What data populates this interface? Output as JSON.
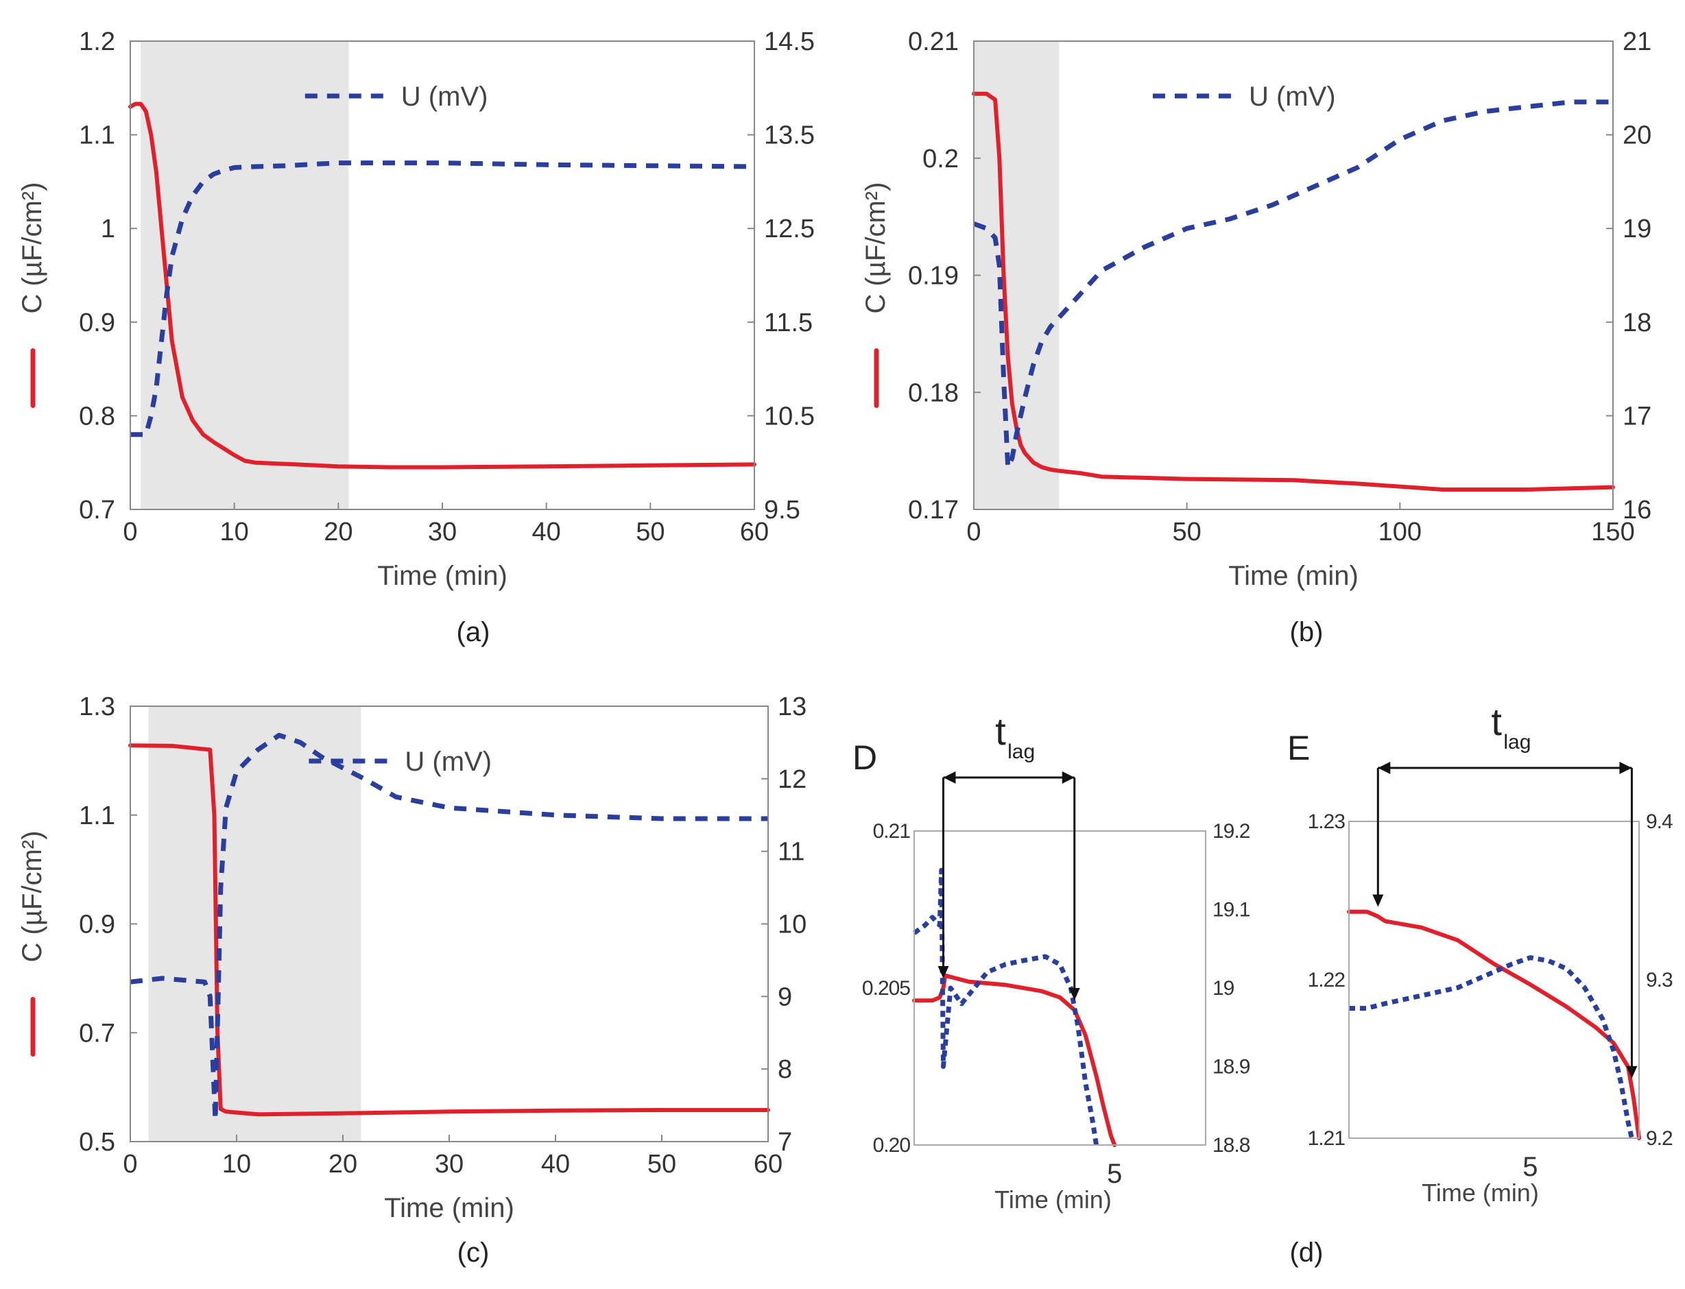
{
  "figure": {
    "panel_captions": [
      "(a)",
      "(b)",
      "(c)",
      "(d)"
    ]
  },
  "chart_data": [
    {
      "id": "a",
      "type": "line",
      "caption": "(a)",
      "xlabel": "Time (min)",
      "ylabel": "C (µF/cm²)",
      "legend": "U (mV)",
      "xlim": [
        0,
        60
      ],
      "ylim": [
        0.7,
        1.2
      ],
      "y2lim": [
        9.5,
        14.5
      ],
      "xticks": [
        "0",
        "10",
        "20",
        "30",
        "40",
        "50",
        "60"
      ],
      "yticks": [
        "0.7",
        "0.8",
        "0.9",
        "1",
        "1.1",
        "1.2"
      ],
      "y2ticks": [
        "9.5",
        "10.5",
        "11.5",
        "12.5",
        "13.5",
        "14.5"
      ],
      "shade": [
        1,
        21
      ],
      "series": [
        {
          "name": "C",
          "axis": "left",
          "style": "solid",
          "color": "#e0202a",
          "x": [
            0,
            0.5,
            1,
            1.5,
            2,
            2.5,
            3,
            3.5,
            4,
            5,
            6,
            7,
            8,
            9,
            10,
            11,
            12,
            14,
            16,
            20,
            25,
            30,
            40,
            50,
            60
          ],
          "y": [
            1.13,
            1.133,
            1.133,
            1.125,
            1.1,
            1.06,
            1.0,
            0.94,
            0.88,
            0.82,
            0.795,
            0.78,
            0.772,
            0.765,
            0.758,
            0.752,
            0.75,
            0.749,
            0.748,
            0.746,
            0.745,
            0.745,
            0.746,
            0.747,
            0.748
          ]
        },
        {
          "name": "U (mV)",
          "axis": "right",
          "style": "dashed",
          "color": "#2a3f9d",
          "x": [
            0,
            1.5,
            2,
            2.5,
            3,
            3.5,
            4,
            5,
            6,
            7,
            8,
            9,
            10,
            12,
            15,
            20,
            30,
            40,
            50,
            60
          ],
          "y": [
            10.3,
            10.3,
            10.5,
            10.8,
            11.3,
            11.8,
            12.2,
            12.6,
            12.85,
            13.0,
            13.08,
            13.12,
            13.15,
            13.16,
            13.17,
            13.2,
            13.2,
            13.18,
            13.17,
            13.16
          ]
        }
      ]
    },
    {
      "id": "b",
      "type": "line",
      "caption": "(b)",
      "xlabel": "Time (min)",
      "ylabel": "C (µF/cm²)",
      "legend": "U (mV)",
      "xlim": [
        0,
        150
      ],
      "ylim": [
        0.17,
        0.21
      ],
      "y2lim": [
        16,
        21
      ],
      "xticks": [
        "0",
        "50",
        "100",
        "150"
      ],
      "yticks": [
        "0.17",
        "0.18",
        "0.19",
        "0.2",
        "0.21"
      ],
      "y2ticks": [
        "16",
        "17",
        "18",
        "19",
        "20",
        "21"
      ],
      "shade": [
        0,
        20
      ],
      "series": [
        {
          "name": "C",
          "axis": "left",
          "style": "solid",
          "color": "#e0202a",
          "x": [
            0,
            1,
            3,
            5,
            6,
            7,
            8,
            9,
            10,
            11,
            12,
            14,
            16,
            18,
            20,
            25,
            30,
            50,
            75,
            90,
            110,
            130,
            150
          ],
          "y": [
            0.2055,
            0.2055,
            0.2055,
            0.205,
            0.2,
            0.19,
            0.183,
            0.179,
            0.177,
            0.1755,
            0.1748,
            0.174,
            0.1736,
            0.1734,
            0.1733,
            0.1731,
            0.1728,
            0.1726,
            0.1725,
            0.1722,
            0.1717,
            0.1717,
            0.1719
          ]
        },
        {
          "name": "U (mV)",
          "axis": "right",
          "style": "dashed",
          "color": "#2a3f9d",
          "x": [
            0,
            3,
            5,
            6,
            7,
            8,
            9,
            10,
            12,
            14,
            16,
            18,
            20,
            25,
            30,
            40,
            50,
            60,
            70,
            80,
            90,
            100,
            110,
            120,
            130,
            140,
            150
          ],
          "y": [
            19.05,
            19.0,
            18.9,
            18.6,
            17.4,
            16.45,
            16.55,
            16.8,
            17.2,
            17.55,
            17.8,
            17.95,
            18.05,
            18.3,
            18.55,
            18.8,
            19.0,
            19.1,
            19.25,
            19.45,
            19.65,
            19.95,
            20.15,
            20.25,
            20.3,
            20.35,
            20.35
          ]
        }
      ]
    },
    {
      "id": "c",
      "type": "line",
      "caption": "(c)",
      "xlabel": "Time (min)",
      "ylabel": "C (µF/cm²)",
      "legend": "U (mV)",
      "xlim": [
        0,
        60
      ],
      "ylim": [
        0.5,
        1.3
      ],
      "y2lim": [
        7,
        13
      ],
      "xticks": [
        "0",
        "10",
        "20",
        "30",
        "40",
        "50",
        "60"
      ],
      "yticks": [
        "0.5",
        "0.7",
        "0.9",
        "1.1",
        "1.3"
      ],
      "y2ticks": [
        "7",
        "8",
        "9",
        "10",
        "11",
        "12",
        "13"
      ],
      "shade": [
        1.7,
        21.7
      ],
      "series": [
        {
          "name": "C",
          "axis": "left",
          "style": "solid",
          "color": "#e0202a",
          "x": [
            0,
            4,
            7.5,
            7.9,
            8.2,
            8.5,
            9,
            12,
            20,
            30,
            40,
            50,
            60
          ],
          "y": [
            1.228,
            1.227,
            1.22,
            1.1,
            0.7,
            0.56,
            0.555,
            0.55,
            0.552,
            0.555,
            0.557,
            0.558,
            0.558
          ]
        },
        {
          "name": "U (mV)",
          "axis": "right",
          "style": "dashed",
          "color": "#2a3f9d",
          "x": [
            0,
            3,
            7,
            7.5,
            8,
            8.5,
            9,
            10,
            12,
            14,
            16,
            18,
            20,
            22,
            25,
            30,
            40,
            50,
            60
          ],
          "y": [
            9.2,
            9.25,
            9.2,
            9.0,
            7.3,
            10.5,
            11.6,
            12.1,
            12.4,
            12.6,
            12.5,
            12.3,
            12.15,
            12.0,
            11.75,
            11.6,
            11.5,
            11.45,
            11.45
          ]
        }
      ]
    },
    {
      "id": "D",
      "type": "line",
      "panel_letter": "D",
      "xlabel": "Time (min)",
      "lag_label": "t",
      "lag_sub": "lag",
      "xtick_label": "5",
      "xlim": [
        0,
        8
      ],
      "ylim": [
        0.2,
        0.21
      ],
      "y2lim": [
        18.8,
        19.2
      ],
      "yticks": [
        "0.20",
        "0.205",
        "0.21"
      ],
      "y2ticks": [
        "18.8",
        "18.9",
        "19",
        "19.1",
        "19.2"
      ],
      "lag": [
        0.8,
        4.4
      ],
      "series": [
        {
          "name": "C",
          "axis": "left",
          "style": "solid",
          "color": "#e0202a",
          "x": [
            0,
            0.5,
            0.7,
            0.8,
            0.85,
            1.5,
            2.5,
            3.5,
            4.0,
            4.4,
            4.7,
            5.0,
            5.2,
            5.4,
            5.5
          ],
          "y": [
            0.2046,
            0.2046,
            0.2047,
            0.205,
            0.2054,
            0.2052,
            0.2051,
            0.2049,
            0.2047,
            0.2043,
            0.2035,
            0.2022,
            0.2012,
            0.2003,
            0.2
          ]
        },
        {
          "name": "U (mV)",
          "axis": "right",
          "style": "dashed",
          "color": "#2a3f9d",
          "x": [
            0,
            0.3,
            0.5,
            0.7,
            0.75,
            0.8,
            0.9,
            1.0,
            1.3,
            2.0,
            2.5,
            3.0,
            3.6,
            4.0,
            4.3,
            4.5,
            4.7,
            4.9,
            5.0
          ],
          "y": [
            19.07,
            19.08,
            19.09,
            19.08,
            19.15,
            18.9,
            18.95,
            19.0,
            18.98,
            19.02,
            19.03,
            19.035,
            19.04,
            19.03,
            19.0,
            18.95,
            18.88,
            18.83,
            18.8
          ]
        }
      ]
    },
    {
      "id": "E",
      "type": "line",
      "panel_letter": "E",
      "xlabel": "Time (min)",
      "lag_label": "t",
      "lag_sub": "lag",
      "xtick_label": "5",
      "xlim": [
        0,
        8
      ],
      "ylim": [
        1.21,
        1.23
      ],
      "y2lim": [
        9.2,
        9.4
      ],
      "yticks": [
        "1.21",
        "1.22",
        "1.23"
      ],
      "y2ticks": [
        "9.2",
        "9.3",
        "9.4"
      ],
      "lag": [
        0.8,
        7.8
      ],
      "series": [
        {
          "name": "C",
          "axis": "right",
          "style": "solid",
          "color": "#e0202a",
          "x": [
            0,
            0.5,
            0.8,
            1.0,
            2,
            3,
            4,
            5,
            6,
            6.8,
            7.3,
            7.7,
            7.85,
            8.0
          ],
          "y": [
            9.343,
            9.343,
            9.34,
            9.337,
            9.333,
            9.325,
            9.31,
            9.297,
            9.283,
            9.27,
            9.26,
            9.245,
            9.225,
            9.2
          ]
        },
        {
          "name": "U (mV)",
          "axis": "right",
          "style": "dashed",
          "color": "#2a3f9d",
          "x": [
            0,
            0.5,
            1,
            2,
            3,
            4,
            4.5,
            5,
            5.5,
            6,
            6.5,
            7,
            7.3,
            7.5,
            7.7,
            7.8
          ],
          "y": [
            9.282,
            9.282,
            9.285,
            9.29,
            9.295,
            9.305,
            9.31,
            9.314,
            9.312,
            9.307,
            9.295,
            9.275,
            9.255,
            9.235,
            9.21,
            9.2
          ]
        }
      ]
    }
  ]
}
